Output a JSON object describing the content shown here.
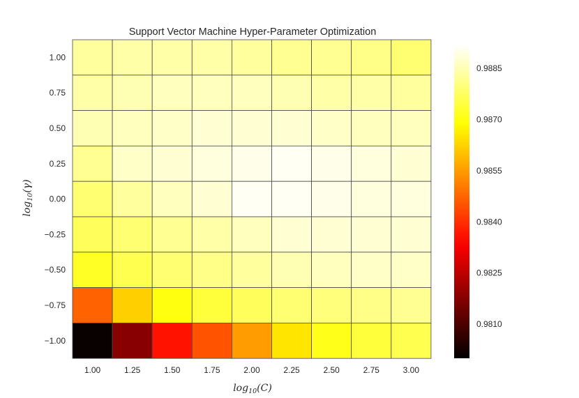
{
  "chart_data": {
    "type": "heatmap",
    "title": "Support Vector Machine Hyper-Parameter Optimization",
    "xlabel": "log10(C)",
    "ylabel": "log10(γ)",
    "x_ticks": [
      "1.00",
      "1.25",
      "1.50",
      "1.75",
      "2.00",
      "2.25",
      "2.50",
      "2.75",
      "3.00"
    ],
    "y_ticks": [
      "1.00",
      "0.75",
      "0.50",
      "0.25",
      "0.00",
      "−0.25",
      "−0.50",
      "−0.75",
      "−1.00"
    ],
    "colormap": "hot",
    "vmin": 0.98,
    "vmax": 0.9892,
    "colorbar_ticks": [
      "0.9885",
      "0.9870",
      "0.9855",
      "0.9840",
      "0.9825",
      "0.9810"
    ],
    "colorbar_values": [
      0.9885,
      0.987,
      0.9855,
      0.984,
      0.9825,
      0.981
    ],
    "values": [
      [
        0.9883,
        0.9884,
        0.9884,
        0.9884,
        0.9883,
        0.9882,
        0.9882,
        0.9881,
        0.9879
      ],
      [
        0.9884,
        0.9885,
        0.9886,
        0.9886,
        0.9886,
        0.9885,
        0.9884,
        0.9884,
        0.9883
      ],
      [
        0.9885,
        0.9886,
        0.9887,
        0.9888,
        0.9888,
        0.9888,
        0.9887,
        0.9886,
        0.9886
      ],
      [
        0.9882,
        0.9887,
        0.9888,
        0.9889,
        0.989,
        0.9891,
        0.989,
        0.9889,
        0.9888
      ],
      [
        0.9879,
        0.9883,
        0.9886,
        0.9888,
        0.9891,
        0.9891,
        0.989,
        0.9889,
        0.9889
      ],
      [
        0.9877,
        0.9879,
        0.9882,
        0.9884,
        0.9886,
        0.9888,
        0.9888,
        0.9888,
        0.9888
      ],
      [
        0.9872,
        0.9876,
        0.9879,
        0.9881,
        0.9883,
        0.9885,
        0.9886,
        0.9887,
        0.9887
      ],
      [
        0.9847,
        0.9862,
        0.987,
        0.9874,
        0.9877,
        0.9879,
        0.988,
        0.9881,
        0.9882
      ],
      [
        0.9801,
        0.9818,
        0.9836,
        0.9845,
        0.9855,
        0.9865,
        0.9871,
        0.9874,
        0.9876
      ]
    ]
  }
}
